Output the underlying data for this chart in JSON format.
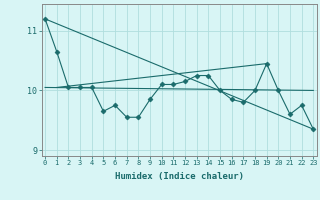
{
  "title": "",
  "xlabel": "Humidex (Indice chaleur)",
  "ylabel": "",
  "background_color": "#d8f5f5",
  "grid_color": "#b0dede",
  "line_color": "#1a6b6b",
  "x_values": [
    0,
    1,
    2,
    3,
    4,
    5,
    6,
    7,
    8,
    9,
    10,
    11,
    12,
    13,
    14,
    15,
    16,
    17,
    18,
    19,
    20,
    21,
    22,
    23
  ],
  "series1": [
    11.2,
    10.65,
    10.05,
    10.05,
    10.05,
    9.65,
    9.75,
    9.55,
    9.55,
    9.85,
    10.1,
    10.1,
    10.15,
    10.25,
    10.25,
    10.0,
    9.85,
    9.8,
    10.0,
    10.45,
    10.0,
    9.6,
    9.75,
    9.35
  ],
  "series2_x": [
    0,
    23
  ],
  "series2_y": [
    11.2,
    9.35
  ],
  "series3_x": [
    0,
    23
  ],
  "series3_y": [
    10.05,
    10.0
  ],
  "series4_x": [
    1,
    19
  ],
  "series4_y": [
    10.05,
    10.45
  ],
  "ylim": [
    8.9,
    11.45
  ],
  "yticks": [
    9,
    10,
    11
  ],
  "xticks": [
    0,
    1,
    2,
    3,
    4,
    5,
    6,
    7,
    8,
    9,
    10,
    11,
    12,
    13,
    14,
    15,
    16,
    17,
    18,
    19,
    20,
    21,
    22,
    23
  ],
  "marker": "D",
  "marker_size": 2.5,
  "linewidth": 0.8
}
